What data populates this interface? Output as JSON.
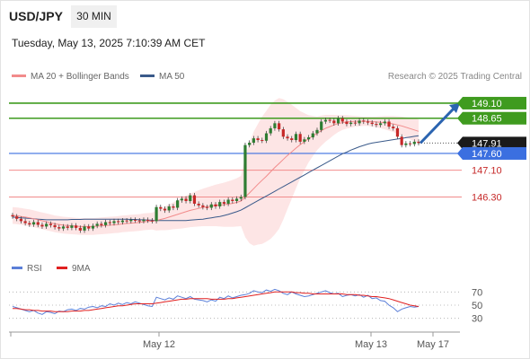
{
  "header": {
    "symbol": "USD/JPY",
    "timeframe": "30 MIN",
    "datetime": "Tuesday, May 13, 2025 7:10:39 AM CET",
    "research": "Research © 2025 Trading Central"
  },
  "legend": {
    "ma20_label": "MA 20 + Bollinger Bands",
    "ma50_label": "MA 50",
    "rsi_label": "RSI",
    "rsi_ma_label": "9MA"
  },
  "colors": {
    "candle_up": "#2e7d32",
    "candle_down": "#c62828",
    "ma20": "#f28b8b",
    "ma50": "#3a5a8a",
    "bollinger_fill": "#fde0e0",
    "resistance": "#3f9b1f",
    "pivot": "#3b6fe0",
    "support": "#f28b8b",
    "arrow": "#2b64b0",
    "rsi": "#5b7fd8",
    "rsi_ma": "#e02020"
  },
  "chart_data": [
    {
      "type": "candlestick",
      "title": "USD/JPY 30 MIN",
      "ylim": [
        144.6,
        149.5
      ],
      "x_ticks": [
        "May 12",
        "May 13",
        "May 17"
      ],
      "price_levels": [
        {
          "value": 149.1,
          "label": "149.10",
          "kind": "resistance"
        },
        {
          "value": 148.65,
          "label": "148.65",
          "kind": "resistance"
        },
        {
          "value": 147.91,
          "label": "147.91",
          "kind": "last"
        },
        {
          "value": 147.6,
          "label": "147.60",
          "kind": "pivot"
        },
        {
          "value": 147.1,
          "label": "147.10",
          "kind": "support"
        },
        {
          "value": 146.3,
          "label": "146.30",
          "kind": "support"
        }
      ],
      "close": [
        145.72,
        145.65,
        145.58,
        145.52,
        145.48,
        145.55,
        145.47,
        145.42,
        145.5,
        145.46,
        145.4,
        145.36,
        145.42,
        145.38,
        145.45,
        145.38,
        145.3,
        145.42,
        145.36,
        145.44,
        145.5,
        145.46,
        145.55,
        145.52,
        145.58,
        145.55,
        145.6,
        145.58,
        145.62,
        145.6,
        145.58,
        145.62,
        145.6,
        145.58,
        146.0,
        145.95,
        145.9,
        146.02,
        145.98,
        146.2,
        146.25,
        146.18,
        146.35,
        146.1,
        146.05,
        146.0,
        145.98,
        146.08,
        146.02,
        146.15,
        146.1,
        146.22,
        146.18,
        146.25,
        146.3,
        147.85,
        147.92,
        148.05,
        148.0,
        147.98,
        148.2,
        148.35,
        148.5,
        148.32,
        148.1,
        148.05,
        148.0,
        148.18,
        147.95,
        148.02,
        148.08,
        148.2,
        148.3,
        148.55,
        148.6,
        148.58,
        148.5,
        148.65,
        148.55,
        148.48,
        148.52,
        148.5,
        148.58,
        148.55,
        148.52,
        148.48,
        148.45,
        148.5,
        148.55,
        148.4,
        148.35,
        148.1,
        147.85,
        147.9,
        147.88,
        147.95,
        147.91
      ],
      "ma20": [
        145.75,
        145.74,
        145.72,
        145.7,
        145.68,
        145.65,
        145.62,
        145.59,
        145.56,
        145.53,
        145.5,
        145.48,
        145.46,
        145.45,
        145.44,
        145.43,
        145.42,
        145.42,
        145.42,
        145.42,
        145.43,
        145.44,
        145.45,
        145.46,
        145.47,
        145.48,
        145.5,
        145.51,
        145.52,
        145.53,
        145.54,
        145.56,
        145.57,
        145.58,
        145.6,
        145.63,
        145.66,
        145.7,
        145.74,
        145.78,
        145.82,
        145.86,
        145.9,
        145.93,
        145.96,
        145.99,
        146.01,
        146.03,
        146.05,
        146.06,
        146.07,
        146.09,
        146.11,
        146.14,
        146.18,
        146.3,
        146.42,
        146.55,
        146.68,
        146.8,
        146.92,
        147.05,
        147.18,
        147.3,
        147.42,
        147.54,
        147.65,
        147.76,
        147.86,
        147.95,
        148.04,
        148.12,
        148.2,
        148.28,
        148.35,
        148.4,
        148.45,
        148.49,
        148.52,
        148.54,
        148.55,
        148.56,
        148.56,
        148.56,
        148.56,
        148.55,
        148.54,
        148.53,
        148.52,
        148.5,
        148.48,
        148.45,
        148.42,
        148.38,
        148.34,
        148.3,
        148.26
      ],
      "ma50": [
        145.7,
        145.69,
        145.68,
        145.67,
        145.66,
        145.65,
        145.64,
        145.63,
        145.62,
        145.62,
        145.62,
        145.62,
        145.62,
        145.62,
        145.63,
        145.63,
        145.63,
        145.64,
        145.64,
        145.64,
        145.64,
        145.64,
        145.64,
        145.64,
        145.64,
        145.64,
        145.64,
        145.64,
        145.63,
        145.63,
        145.62,
        145.62,
        145.61,
        145.61,
        145.6,
        145.6,
        145.6,
        145.6,
        145.6,
        145.6,
        145.6,
        145.6,
        145.61,
        145.62,
        145.63,
        145.64,
        145.66,
        145.68,
        145.7,
        145.72,
        145.75,
        145.78,
        145.82,
        145.86,
        145.91,
        145.98,
        146.05,
        146.12,
        146.19,
        146.26,
        146.33,
        146.4,
        146.47,
        146.54,
        146.61,
        146.68,
        146.75,
        146.82,
        146.89,
        146.96,
        147.03,
        147.1,
        147.17,
        147.24,
        147.31,
        147.38,
        147.45,
        147.52,
        147.59,
        147.64,
        147.7,
        147.75,
        147.8,
        147.84,
        147.88,
        147.91,
        147.93,
        147.95,
        147.97,
        147.99,
        148.01,
        148.03,
        148.05,
        148.07,
        148.09,
        148.11,
        148.13
      ],
      "bb_width": [
        0.25,
        0.25,
        0.25,
        0.25,
        0.25,
        0.25,
        0.25,
        0.25,
        0.25,
        0.25,
        0.25,
        0.25,
        0.25,
        0.25,
        0.25,
        0.25,
        0.25,
        0.25,
        0.25,
        0.25,
        0.25,
        0.25,
        0.25,
        0.25,
        0.25,
        0.25,
        0.25,
        0.25,
        0.25,
        0.25,
        0.25,
        0.25,
        0.25,
        0.25,
        0.3,
        0.32,
        0.35,
        0.38,
        0.4,
        0.43,
        0.46,
        0.48,
        0.5,
        0.52,
        0.54,
        0.56,
        0.58,
        0.6,
        0.62,
        0.64,
        0.66,
        0.68,
        0.7,
        0.72,
        0.75,
        1.2,
        1.5,
        1.7,
        1.8,
        1.9,
        1.95,
        2.0,
        2.0,
        1.95,
        1.8,
        1.6,
        1.4,
        1.2,
        1.0,
        0.85,
        0.7,
        0.6,
        0.5,
        0.45,
        0.4,
        0.35,
        0.3,
        0.25,
        0.22,
        0.2,
        0.18,
        0.16,
        0.15,
        0.14,
        0.14,
        0.15,
        0.16,
        0.18,
        0.2,
        0.22,
        0.24,
        0.26,
        0.28,
        0.3,
        0.32,
        0.34,
        0.36
      ],
      "projection": {
        "from": 147.91,
        "to": 149.1
      }
    },
    {
      "type": "line",
      "title": "RSI",
      "ylim": [
        20,
        80
      ],
      "y_ticks": [
        70,
        50,
        30
      ],
      "series": [
        {
          "name": "RSI",
          "values": [
            48,
            46,
            44,
            42,
            40,
            42,
            38,
            36,
            40,
            39,
            37,
            41,
            40,
            43,
            44,
            42,
            45,
            44,
            47,
            48,
            46,
            49,
            48,
            52,
            50,
            53,
            51,
            54,
            52,
            55,
            53,
            51,
            49,
            48,
            62,
            60,
            58,
            61,
            59,
            64,
            62,
            60,
            63,
            59,
            58,
            57,
            55,
            58,
            56,
            62,
            60,
            64,
            61,
            63,
            65,
            66,
            68,
            72,
            70,
            69,
            73,
            71,
            74,
            72,
            68,
            66,
            70,
            67,
            65,
            63,
            64,
            66,
            68,
            70,
            72,
            69,
            67,
            68,
            63,
            65,
            66,
            64,
            66,
            62,
            65,
            60,
            61,
            57,
            56,
            50,
            46,
            40,
            44,
            46,
            48,
            47,
            48
          ]
        },
        {
          "name": "9MA",
          "values": [
            45,
            45,
            44,
            43,
            43,
            42,
            42,
            41,
            41,
            41,
            40,
            40,
            40,
            40,
            41,
            41,
            41,
            42,
            42,
            43,
            44,
            45,
            46,
            47,
            48,
            49,
            49,
            50,
            51,
            52,
            52,
            52,
            52,
            52,
            53,
            54,
            55,
            56,
            57,
            58,
            59,
            59,
            60,
            60,
            60,
            60,
            60,
            59,
            59,
            59,
            59,
            60,
            60,
            61,
            62,
            63,
            64,
            65,
            66,
            67,
            68,
            69,
            70,
            70,
            70,
            70,
            70,
            69,
            69,
            68,
            68,
            67,
            67,
            67,
            67,
            67,
            67,
            67,
            67,
            66,
            66,
            66,
            65,
            65,
            64,
            63,
            63,
            62,
            61,
            60,
            58,
            56,
            54,
            52,
            50,
            49,
            48
          ]
        }
      ]
    }
  ]
}
